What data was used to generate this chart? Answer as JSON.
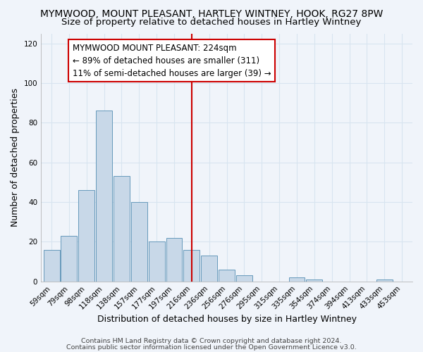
{
  "title": "MYMWOOD, MOUNT PLEASANT, HARTLEY WINTNEY, HOOK, RG27 8PW",
  "subtitle": "Size of property relative to detached houses in Hartley Wintney",
  "xlabel": "Distribution of detached houses by size in Hartley Wintney",
  "ylabel": "Number of detached properties",
  "categories": [
    "59sqm",
    "79sqm",
    "98sqm",
    "118sqm",
    "138sqm",
    "157sqm",
    "177sqm",
    "197sqm",
    "216sqm",
    "236sqm",
    "256sqm",
    "276sqm",
    "295sqm",
    "315sqm",
    "335sqm",
    "354sqm",
    "374sqm",
    "394sqm",
    "413sqm",
    "433sqm",
    "453sqm"
  ],
  "values": [
    16,
    23,
    46,
    86,
    53,
    40,
    20,
    22,
    16,
    13,
    6,
    3,
    0,
    0,
    2,
    1,
    0,
    0,
    0,
    1,
    0
  ],
  "bar_color": "#c8d8e8",
  "bar_edge_color": "#6699bb",
  "vline_x": 8,
  "vline_color": "#cc0000",
  "annotation_text": "MYMWOOD MOUNT PLEASANT: 224sqm\n← 89% of detached houses are smaller (311)\n11% of semi-detached houses are larger (39) →",
  "annotation_box_color": "#ffffff",
  "annotation_box_edge": "#cc0000",
  "ylim": [
    0,
    125
  ],
  "yticks": [
    0,
    20,
    40,
    60,
    80,
    100,
    120
  ],
  "footer1": "Contains HM Land Registry data © Crown copyright and database right 2024.",
  "footer2": "Contains public sector information licensed under the Open Government Licence v3.0.",
  "bg_color": "#f0f4fa",
  "grid_color": "#d8e4f0",
  "title_fontsize": 10,
  "subtitle_fontsize": 9.5,
  "axis_label_fontsize": 9,
  "tick_fontsize": 7.5,
  "annotation_fontsize": 8.5,
  "footer_fontsize": 6.8
}
